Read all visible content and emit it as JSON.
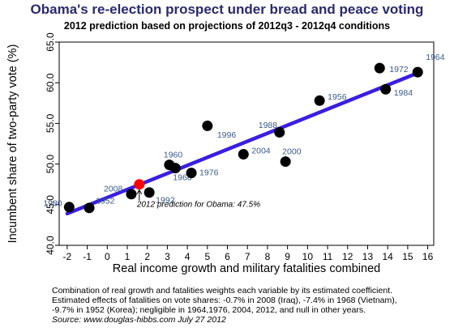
{
  "title": "Obama's re-election prospect under bread and peace voting",
  "subtitle": "2012 prediction based on projections of 2012q3 - 2012q4 conditions",
  "notes": [
    "Combination of real growth and fatalities weights each variable by its estimated coefficient.",
    "Estimated effects of fatalities on vote shares: -0.7% in 2008 (Iraq), -7.4% in 1968 (Vietnam),",
    "-9.7% in 1952 (Korea); negligible in 1964,1976, 2004, 2012, and null in other years."
  ],
  "source": "Source: www.douglas-hibbs.com July 27 2012",
  "chart_data": {
    "type": "scatter",
    "xlabel": "Real income growth and military fatalities combined",
    "ylabel": "Incumbent share of two-party vote (%)",
    "xlim": [
      -2.4,
      16.3
    ],
    "ylim": [
      40.0,
      65.0
    ],
    "xticks": [
      -2,
      -1,
      0,
      1,
      2,
      3,
      4,
      5,
      6,
      7,
      8,
      9,
      10,
      11,
      12,
      13,
      14,
      15,
      16
    ],
    "yticks": [
      "40.0",
      "45.0",
      "50.0",
      "55.0",
      "60.0",
      "65.0"
    ],
    "series": [
      {
        "points": [
          {
            "label": "1980",
            "x": -1.9,
            "y": 44.7
          },
          {
            "label": "1952",
            "x": -0.9,
            "y": 44.6
          },
          {
            "label": "2008",
            "x": 1.2,
            "y": 46.3
          },
          {
            "label": "1992",
            "x": 2.1,
            "y": 46.5
          },
          {
            "label": "1960",
            "x": 3.1,
            "y": 49.9
          },
          {
            "label": "1968",
            "x": 3.4,
            "y": 49.5
          },
          {
            "label": "1976",
            "x": 4.2,
            "y": 48.9
          },
          {
            "label": "1996",
            "x": 5.0,
            "y": 54.7
          },
          {
            "label": "2004",
            "x": 6.8,
            "y": 51.2
          },
          {
            "label": "1988",
            "x": 8.6,
            "y": 53.9
          },
          {
            "label": "2000",
            "x": 8.9,
            "y": 50.3
          },
          {
            "label": "1956",
            "x": 10.6,
            "y": 57.8
          },
          {
            "label": "1972",
            "x": 13.6,
            "y": 61.8
          },
          {
            "label": "1984",
            "x": 13.9,
            "y": 59.2
          },
          {
            "label": "1964",
            "x": 15.5,
            "y": 61.3
          }
        ],
        "color": "#000000"
      }
    ],
    "fit_line": {
      "x": [
        -2.0,
        15.6
      ],
      "y": [
        43.9,
        61.3
      ],
      "color": "#3a1ee0"
    },
    "prediction": {
      "x": 1.6,
      "y": 47.5,
      "color": "#ff0000",
      "annotation": "2012 prediction for Obama: 47.5%"
    },
    "label_color": "#3a5a8a",
    "grid": false
  }
}
